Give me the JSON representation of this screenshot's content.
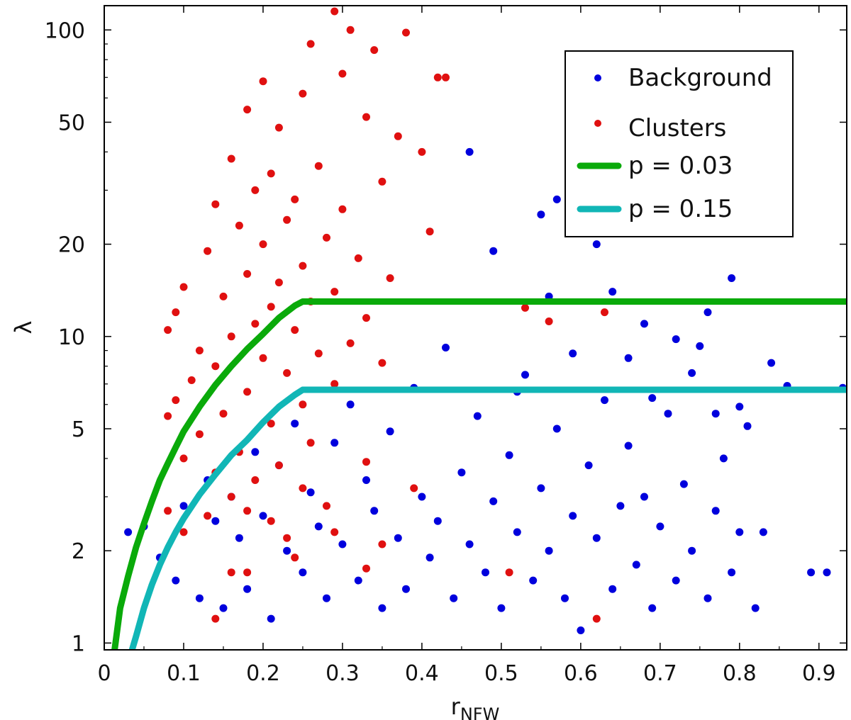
{
  "chart_data": {
    "type": "scatter",
    "title": "",
    "xlabel": "r",
    "xlabel_subscript": "NFW",
    "ylabel": "λ",
    "xlim": [
      0,
      0.935
    ],
    "ylim": [
      0.95,
      120
    ],
    "yscale": "log",
    "xticks": [
      0,
      0.1,
      0.2,
      0.3,
      0.4,
      0.5,
      0.6,
      0.7,
      0.8,
      0.9
    ],
    "xtick_labels": [
      "0",
      "0.1",
      "0.2",
      "0.3",
      "0.4",
      "0.5",
      "0.6",
      "0.7",
      "0.8",
      "0.9"
    ],
    "yticks": [
      1,
      2,
      5,
      10,
      20,
      50,
      100
    ],
    "ytick_labels": [
      "1",
      "2",
      "5",
      "10",
      "20",
      "50",
      "100"
    ],
    "legend_position": "top-right",
    "series": [
      {
        "name": "Background",
        "kind": "scatter",
        "color": "#0000dd",
        "points": [
          [
            0.03,
            2.3
          ],
          [
            0.05,
            2.4
          ],
          [
            0.07,
            1.9
          ],
          [
            0.09,
            1.6
          ],
          [
            0.1,
            2.8
          ],
          [
            0.12,
            1.4
          ],
          [
            0.13,
            3.4
          ],
          [
            0.14,
            2.5
          ],
          [
            0.15,
            1.3
          ],
          [
            0.16,
            3.0
          ],
          [
            0.17,
            2.2
          ],
          [
            0.18,
            1.5
          ],
          [
            0.19,
            4.2
          ],
          [
            0.2,
            2.6
          ],
          [
            0.21,
            1.2
          ],
          [
            0.22,
            3.8
          ],
          [
            0.23,
            2.0
          ],
          [
            0.24,
            5.2
          ],
          [
            0.25,
            1.7
          ],
          [
            0.26,
            3.1
          ],
          [
            0.27,
            2.4
          ],
          [
            0.28,
            1.4
          ],
          [
            0.29,
            4.5
          ],
          [
            0.3,
            2.1
          ],
          [
            0.31,
            6.0
          ],
          [
            0.32,
            1.6
          ],
          [
            0.33,
            3.4
          ],
          [
            0.34,
            2.7
          ],
          [
            0.35,
            1.3
          ],
          [
            0.36,
            4.9
          ],
          [
            0.37,
            2.2
          ],
          [
            0.38,
            1.5
          ],
          [
            0.39,
            6.8
          ],
          [
            0.4,
            3.0
          ],
          [
            0.41,
            1.9
          ],
          [
            0.42,
            2.5
          ],
          [
            0.43,
            9.2
          ],
          [
            0.44,
            1.4
          ],
          [
            0.45,
            3.6
          ],
          [
            0.46,
            2.1
          ],
          [
            0.47,
            5.5
          ],
          [
            0.48,
            1.7
          ],
          [
            0.49,
            2.9
          ],
          [
            0.5,
            1.3
          ],
          [
            0.51,
            4.1
          ],
          [
            0.52,
            2.3
          ],
          [
            0.53,
            7.5
          ],
          [
            0.54,
            1.6
          ],
          [
            0.55,
            3.2
          ],
          [
            0.56,
            2.0
          ],
          [
            0.57,
            5.0
          ],
          [
            0.58,
            1.4
          ],
          [
            0.59,
            2.6
          ],
          [
            0.6,
            1.1
          ],
          [
            0.61,
            3.8
          ],
          [
            0.62,
            2.2
          ],
          [
            0.63,
            6.2
          ],
          [
            0.64,
            1.5
          ],
          [
            0.65,
            2.8
          ],
          [
            0.66,
            4.4
          ],
          [
            0.67,
            1.8
          ],
          [
            0.68,
            3.0
          ],
          [
            0.69,
            1.3
          ],
          [
            0.7,
            2.4
          ],
          [
            0.71,
            5.6
          ],
          [
            0.72,
            1.6
          ],
          [
            0.73,
            3.3
          ],
          [
            0.74,
            2.0
          ],
          [
            0.75,
            9.3
          ],
          [
            0.76,
            1.4
          ],
          [
            0.77,
            2.7
          ],
          [
            0.78,
            4.0
          ],
          [
            0.79,
            1.7
          ],
          [
            0.8,
            2.3
          ],
          [
            0.81,
            5.1
          ],
          [
            0.82,
            1.3
          ],
          [
            0.83,
            2.3
          ],
          [
            0.84,
            8.2
          ],
          [
            0.89,
            1.7
          ],
          [
            0.91,
            1.7
          ],
          [
            0.46,
            40
          ],
          [
            0.57,
            28
          ],
          [
            0.55,
            25
          ],
          [
            0.62,
            20
          ],
          [
            0.49,
            19
          ],
          [
            0.79,
            15.5
          ],
          [
            0.64,
            14
          ],
          [
            0.76,
            12
          ],
          [
            0.68,
            11
          ],
          [
            0.72,
            9.8
          ],
          [
            0.59,
            8.8
          ],
          [
            0.66,
            8.5
          ],
          [
            0.74,
            7.6
          ],
          [
            0.86,
            6.9
          ],
          [
            0.93,
            6.8
          ],
          [
            0.52,
            6.6
          ],
          [
            0.69,
            6.3
          ],
          [
            0.8,
            5.9
          ],
          [
            0.77,
            5.6
          ],
          [
            0.56,
            13.5
          ]
        ]
      },
      {
        "name": "Clusters",
        "kind": "scatter",
        "color": "#e01010",
        "points": [
          [
            0.29,
            115
          ],
          [
            0.31,
            100
          ],
          [
            0.38,
            98
          ],
          [
            0.26,
            90
          ],
          [
            0.34,
            86
          ],
          [
            0.42,
            70
          ],
          [
            0.43,
            70
          ],
          [
            0.2,
            68
          ],
          [
            0.3,
            72
          ],
          [
            0.25,
            62
          ],
          [
            0.18,
            55
          ],
          [
            0.33,
            52
          ],
          [
            0.22,
            48
          ],
          [
            0.37,
            45
          ],
          [
            0.4,
            40
          ],
          [
            0.16,
            38
          ],
          [
            0.27,
            36
          ],
          [
            0.21,
            34
          ],
          [
            0.35,
            32
          ],
          [
            0.19,
            30
          ],
          [
            0.24,
            28
          ],
          [
            0.14,
            27
          ],
          [
            0.3,
            26
          ],
          [
            0.23,
            24
          ],
          [
            0.17,
            23
          ],
          [
            0.41,
            22
          ],
          [
            0.28,
            21
          ],
          [
            0.2,
            20
          ],
          [
            0.13,
            19
          ],
          [
            0.32,
            18
          ],
          [
            0.25,
            17
          ],
          [
            0.18,
            16
          ],
          [
            0.36,
            15.5
          ],
          [
            0.22,
            15
          ],
          [
            0.1,
            14.5
          ],
          [
            0.29,
            14
          ],
          [
            0.15,
            13.5
          ],
          [
            0.26,
            13
          ],
          [
            0.21,
            12.5
          ],
          [
            0.09,
            12
          ],
          [
            0.33,
            11.5
          ],
          [
            0.19,
            11
          ],
          [
            0.24,
            10.5
          ],
          [
            0.08,
            10.5
          ],
          [
            0.16,
            10
          ],
          [
            0.31,
            9.5
          ],
          [
            0.12,
            9
          ],
          [
            0.27,
            8.8
          ],
          [
            0.2,
            8.5
          ],
          [
            0.35,
            8.2
          ],
          [
            0.14,
            8
          ],
          [
            0.23,
            7.6
          ],
          [
            0.11,
            7.2
          ],
          [
            0.29,
            7
          ],
          [
            0.18,
            6.6
          ],
          [
            0.09,
            6.2
          ],
          [
            0.25,
            6
          ],
          [
            0.15,
            5.6
          ],
          [
            0.08,
            5.5
          ],
          [
            0.21,
            5.2
          ],
          [
            0.12,
            4.8
          ],
          [
            0.26,
            4.5
          ],
          [
            0.17,
            4.2
          ],
          [
            0.1,
            4
          ],
          [
            0.22,
            3.8
          ],
          [
            0.14,
            3.6
          ],
          [
            0.33,
            3.9
          ],
          [
            0.19,
            3.4
          ],
          [
            0.25,
            3.2
          ],
          [
            0.16,
            3
          ],
          [
            0.39,
            3.2
          ],
          [
            0.28,
            2.8
          ],
          [
            0.13,
            2.6
          ],
          [
            0.08,
            2.7
          ],
          [
            0.21,
            2.5
          ],
          [
            0.18,
            2.7
          ],
          [
            0.29,
            2.3
          ],
          [
            0.1,
            2.3
          ],
          [
            0.23,
            2.2
          ],
          [
            0.35,
            2.1
          ],
          [
            0.24,
            1.9
          ],
          [
            0.16,
            1.7
          ],
          [
            0.33,
            1.75
          ],
          [
            0.18,
            1.7
          ],
          [
            0.51,
            1.7
          ],
          [
            0.62,
            1.2
          ],
          [
            0.14,
            1.2
          ],
          [
            0.53,
            12.4
          ],
          [
            0.63,
            12
          ],
          [
            0.56,
            11.2
          ]
        ]
      },
      {
        "name": "p = 0.03",
        "kind": "line",
        "color": "#0aaa0a",
        "x": [
          0.013,
          0.02,
          0.03,
          0.04,
          0.05,
          0.06,
          0.07,
          0.08,
          0.09,
          0.1,
          0.12,
          0.14,
          0.16,
          0.18,
          0.2,
          0.22,
          0.24,
          0.25,
          0.35,
          0.45,
          0.55,
          0.65,
          0.75,
          0.85,
          0.935
        ],
        "y": [
          0.95,
          1.3,
          1.65,
          2.05,
          2.45,
          2.9,
          3.4,
          3.85,
          4.35,
          4.9,
          5.9,
          6.95,
          8.0,
          9.1,
          10.2,
          11.5,
          12.6,
          13.0,
          13.0,
          13.0,
          13.0,
          13.0,
          13.0,
          13.0,
          13.0
        ]
      },
      {
        "name": "p = 0.15",
        "kind": "line",
        "color": "#11b6b6",
        "x": [
          0.035,
          0.04,
          0.05,
          0.06,
          0.07,
          0.08,
          0.09,
          0.1,
          0.12,
          0.14,
          0.16,
          0.18,
          0.2,
          0.22,
          0.24,
          0.25,
          0.35,
          0.45,
          0.55,
          0.65,
          0.75,
          0.85,
          0.935
        ],
        "y": [
          0.95,
          1.05,
          1.3,
          1.55,
          1.8,
          2.05,
          2.3,
          2.55,
          3.05,
          3.55,
          4.1,
          4.6,
          5.25,
          5.9,
          6.45,
          6.7,
          6.7,
          6.7,
          6.7,
          6.7,
          6.7,
          6.7,
          6.7
        ]
      }
    ]
  }
}
